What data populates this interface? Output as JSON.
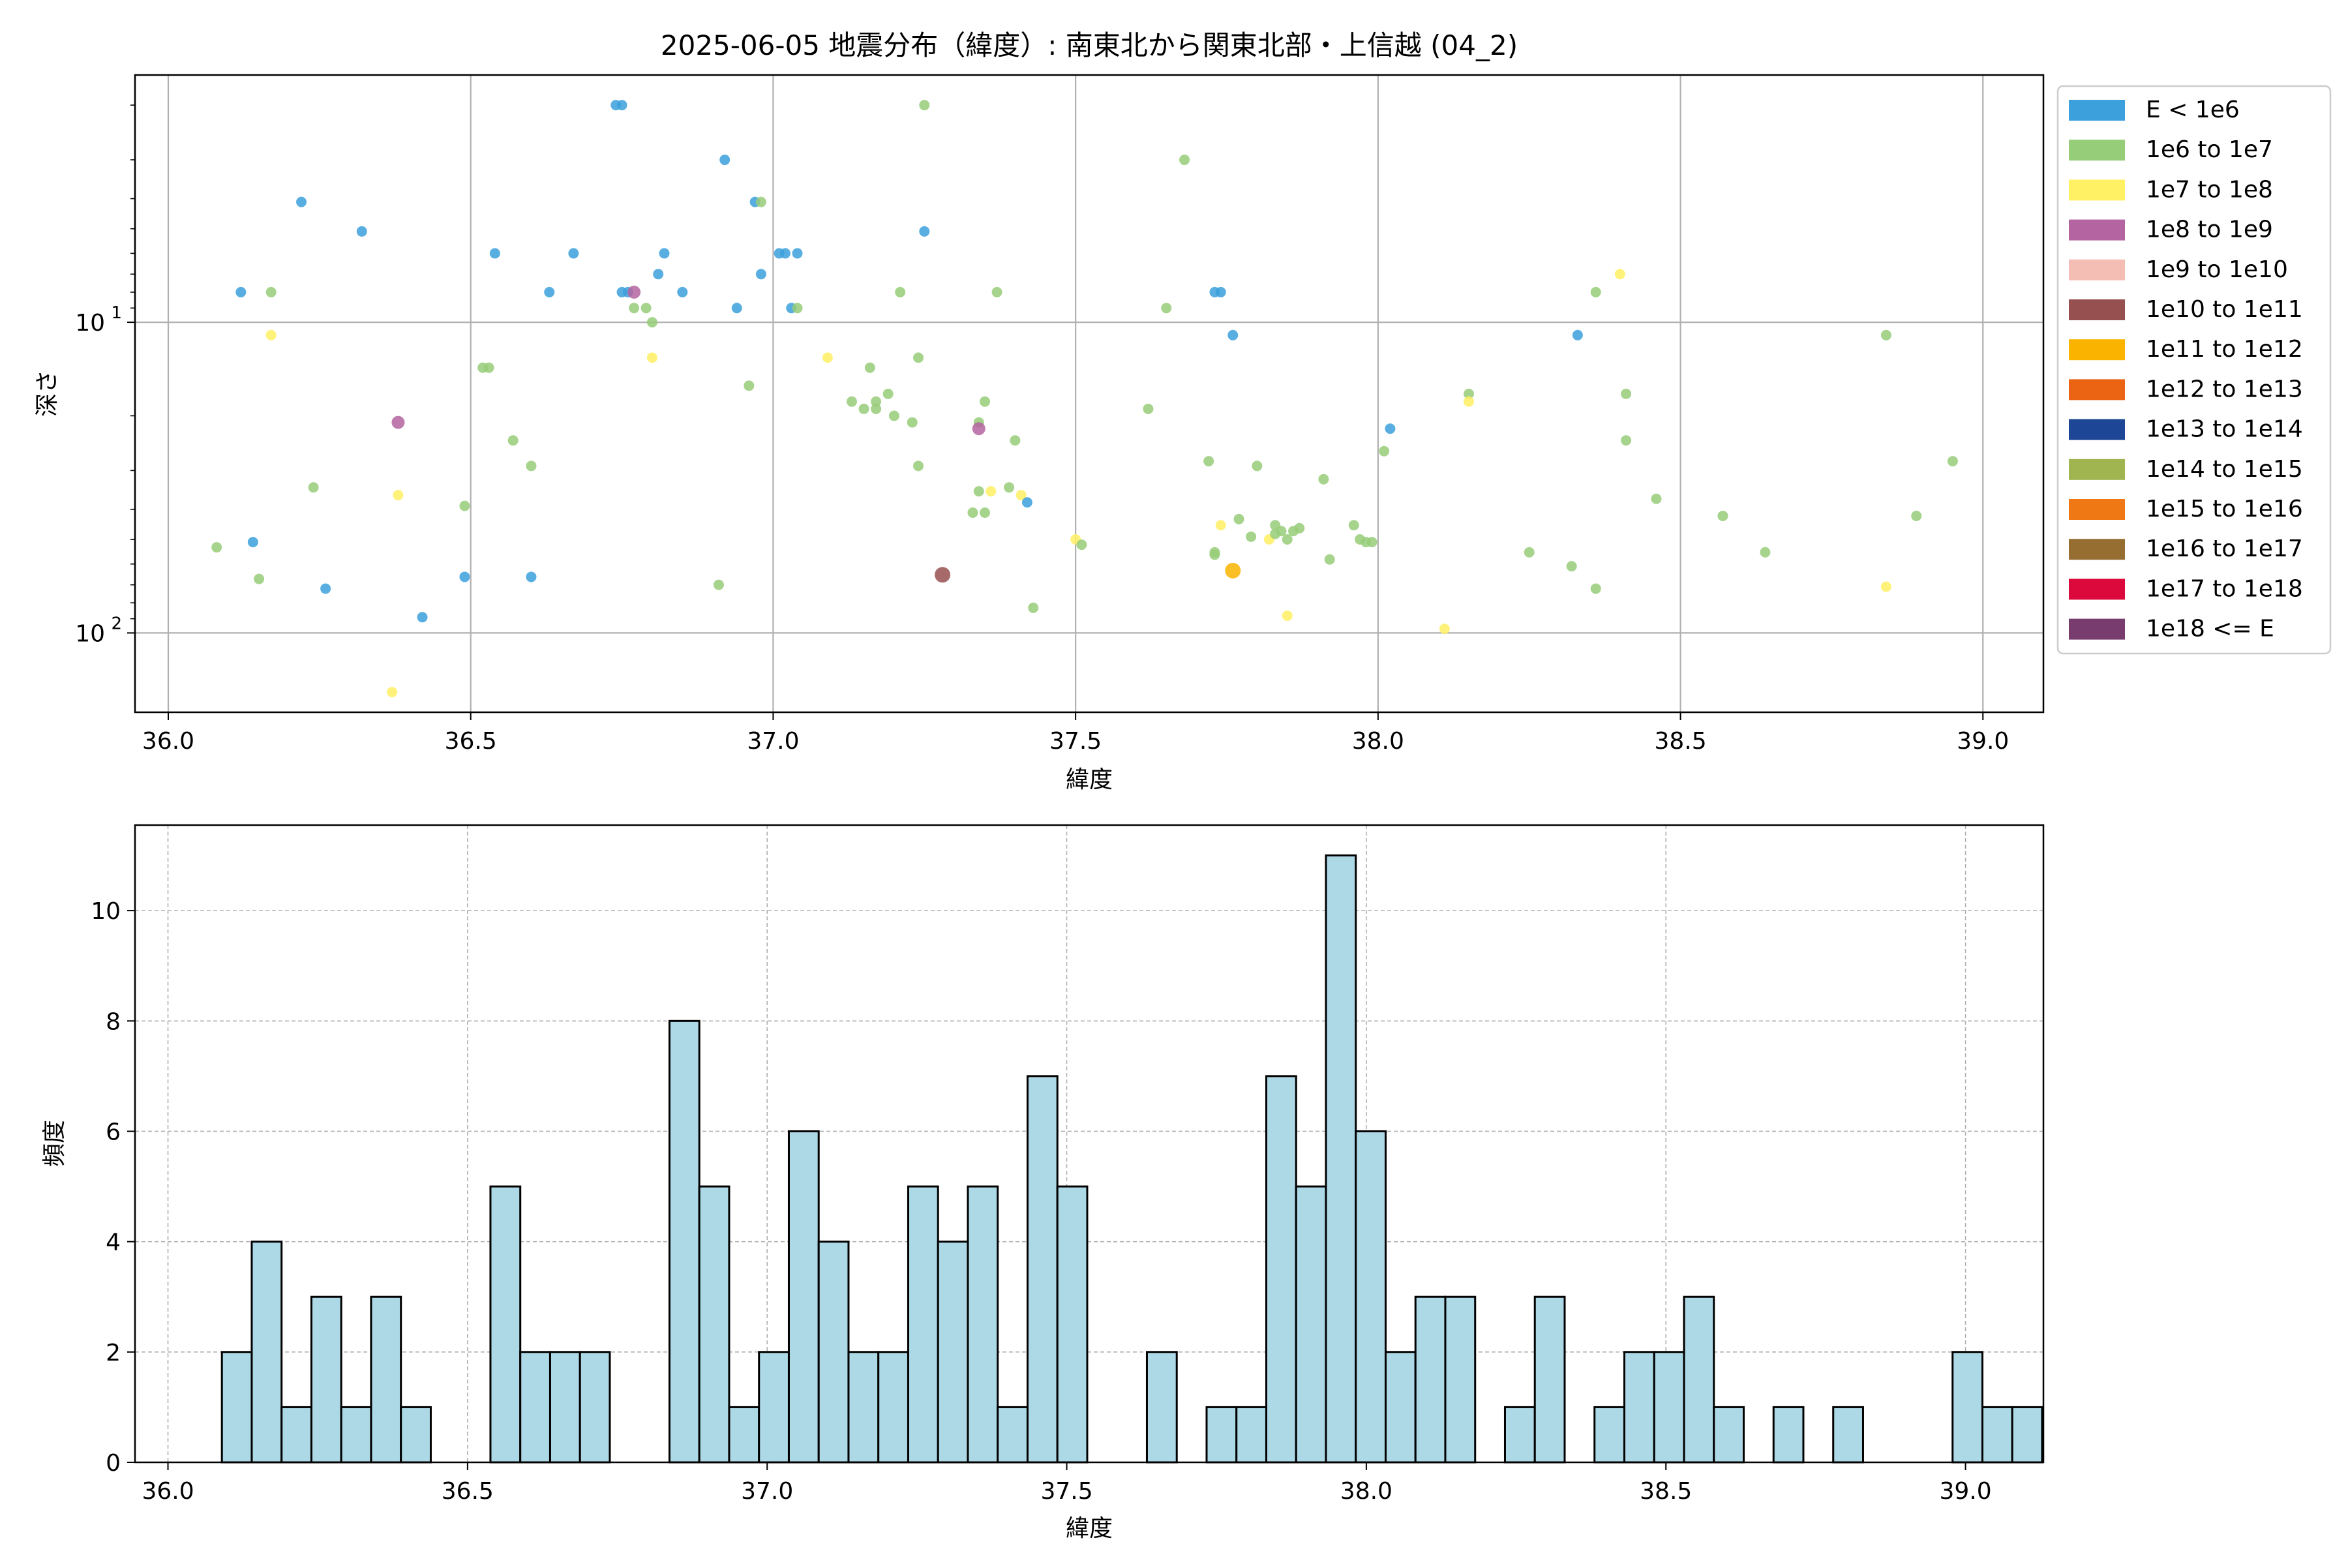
{
  "title": "2025-06-05 地震分布（緯度）: 南東北から関東北部・上信越 (04_2)",
  "chart_data": [
    {
      "type": "scatter",
      "xlabel": "緯度",
      "ylabel": "深さ",
      "xlim": [
        35.945,
        39.1
      ],
      "ylim": [
        180,
        1.6
      ],
      "yscale": "log",
      "y_inverted": true,
      "grid": true,
      "x_ticks": [
        36.0,
        36.5,
        37.0,
        37.5,
        38.0,
        38.5,
        39.0
      ],
      "x_tick_labels": [
        "36.0",
        "36.5",
        "37.0",
        "37.5",
        "38.0",
        "38.5",
        "39.0"
      ],
      "y_ticks": [
        10,
        100
      ],
      "y_tick_bases": [
        "10",
        "10"
      ],
      "y_tick_exps": [
        "1",
        "2"
      ],
      "legend_position": "outside-right",
      "legend": [
        {
          "label": "E < 1e6",
          "color": "#3ca0dc"
        },
        {
          "label": "1e6 to 1e7",
          "color": "#96cd78"
        },
        {
          "label": "1e7 to 1e8",
          "color": "#fff064"
        },
        {
          "label": "1e8 to 1e9",
          "color": "#b464a0"
        },
        {
          "label": "1e9 to 1e10",
          "color": "#f5beb4"
        },
        {
          "label": "1e10 to 1e11",
          "color": "#965050"
        },
        {
          "label": "1e11 to 1e12",
          "color": "#fab400"
        },
        {
          "label": "1e12 to 1e13",
          "color": "#eb6414"
        },
        {
          "label": "1e13 to 1e14",
          "color": "#1e4696"
        },
        {
          "label": "1e14 to 1e15",
          "color": "#a0b450"
        },
        {
          "label": "1e15 to 1e16",
          "color": "#f07814"
        },
        {
          "label": "1e16 to 1e17",
          "color": "#966e32"
        },
        {
          "label": "1e17 to 1e18",
          "color": "#dc0a3c"
        },
        {
          "label": "1e18 <= E",
          "color": "#783c6e"
        }
      ],
      "points": [
        {
          "x": 36.75,
          "y": 2.0,
          "c": 0
        },
        {
          "x": 36.74,
          "y": 2.0,
          "c": 0
        },
        {
          "x": 37.25,
          "y": 2.0,
          "c": 1
        },
        {
          "x": 36.92,
          "y": 3.0,
          "c": 0
        },
        {
          "x": 37.68,
          "y": 3.0,
          "c": 1
        },
        {
          "x": 36.22,
          "y": 4.1,
          "c": 0
        },
        {
          "x": 36.97,
          "y": 4.1,
          "c": 0
        },
        {
          "x": 36.98,
          "y": 4.1,
          "c": 1
        },
        {
          "x": 36.32,
          "y": 5.1,
          "c": 0
        },
        {
          "x": 37.25,
          "y": 5.1,
          "c": 0
        },
        {
          "x": 36.54,
          "y": 6.0,
          "c": 0
        },
        {
          "x": 36.67,
          "y": 6.0,
          "c": 0
        },
        {
          "x": 36.82,
          "y": 6.0,
          "c": 0
        },
        {
          "x": 37.01,
          "y": 6.0,
          "c": 0
        },
        {
          "x": 37.02,
          "y": 6.0,
          "c": 0
        },
        {
          "x": 37.04,
          "y": 6.0,
          "c": 0
        },
        {
          "x": 36.81,
          "y": 7.0,
          "c": 0
        },
        {
          "x": 36.98,
          "y": 7.0,
          "c": 0
        },
        {
          "x": 38.4,
          "y": 7.0,
          "c": 2
        },
        {
          "x": 36.12,
          "y": 8.0,
          "c": 0
        },
        {
          "x": 36.17,
          "y": 8.0,
          "c": 1
        },
        {
          "x": 36.63,
          "y": 8.0,
          "c": 0
        },
        {
          "x": 36.75,
          "y": 8.0,
          "c": 0
        },
        {
          "x": 36.76,
          "y": 8.0,
          "c": 0
        },
        {
          "x": 36.77,
          "y": 8.0,
          "c": 3
        },
        {
          "x": 36.85,
          "y": 8.0,
          "c": 0
        },
        {
          "x": 37.21,
          "y": 8.0,
          "c": 1
        },
        {
          "x": 37.37,
          "y": 8.0,
          "c": 1
        },
        {
          "x": 37.73,
          "y": 8.0,
          "c": 0
        },
        {
          "x": 37.74,
          "y": 8.0,
          "c": 0
        },
        {
          "x": 38.36,
          "y": 8.0,
          "c": 1
        },
        {
          "x": 36.77,
          "y": 9.0,
          "c": 1
        },
        {
          "x": 36.79,
          "y": 9.0,
          "c": 1
        },
        {
          "x": 36.94,
          "y": 9.0,
          "c": 0
        },
        {
          "x": 37.03,
          "y": 9.0,
          "c": 0
        },
        {
          "x": 37.04,
          "y": 9.0,
          "c": 1
        },
        {
          "x": 37.65,
          "y": 9.0,
          "c": 1
        },
        {
          "x": 36.8,
          "y": 10.0,
          "c": 1
        },
        {
          "x": 36.17,
          "y": 11.0,
          "c": 2
        },
        {
          "x": 37.76,
          "y": 11.0,
          "c": 0
        },
        {
          "x": 38.33,
          "y": 11.0,
          "c": 0
        },
        {
          "x": 38.84,
          "y": 11.0,
          "c": 1
        },
        {
          "x": 36.8,
          "y": 13.0,
          "c": 2
        },
        {
          "x": 37.09,
          "y": 13.0,
          "c": 2
        },
        {
          "x": 37.24,
          "y": 13.0,
          "c": 1
        },
        {
          "x": 36.52,
          "y": 14.0,
          "c": 1
        },
        {
          "x": 36.53,
          "y": 14.0,
          "c": 1
        },
        {
          "x": 37.16,
          "y": 14.0,
          "c": 1
        },
        {
          "x": 36.96,
          "y": 16.0,
          "c": 1
        },
        {
          "x": 37.19,
          "y": 17.0,
          "c": 1
        },
        {
          "x": 38.15,
          "y": 17.0,
          "c": 1
        },
        {
          "x": 38.41,
          "y": 17.0,
          "c": 1
        },
        {
          "x": 37.13,
          "y": 18.0,
          "c": 1
        },
        {
          "x": 37.17,
          "y": 18.0,
          "c": 1
        },
        {
          "x": 37.35,
          "y": 18.0,
          "c": 1
        },
        {
          "x": 38.15,
          "y": 18.0,
          "c": 2
        },
        {
          "x": 37.15,
          "y": 19.0,
          "c": 1
        },
        {
          "x": 37.17,
          "y": 19.0,
          "c": 1
        },
        {
          "x": 37.62,
          "y": 19.0,
          "c": 1
        },
        {
          "x": 37.2,
          "y": 20.0,
          "c": 1
        },
        {
          "x": 37.23,
          "y": 21.0,
          "c": 1
        },
        {
          "x": 37.34,
          "y": 21.0,
          "c": 1
        },
        {
          "x": 36.38,
          "y": 21.0,
          "c": 3
        },
        {
          "x": 38.02,
          "y": 22.0,
          "c": 0
        },
        {
          "x": 37.34,
          "y": 22.0,
          "c": 3
        },
        {
          "x": 36.57,
          "y": 24.0,
          "c": 1
        },
        {
          "x": 37.4,
          "y": 24.0,
          "c": 1
        },
        {
          "x": 38.41,
          "y": 24.0,
          "c": 1
        },
        {
          "x": 38.01,
          "y": 26.0,
          "c": 1
        },
        {
          "x": 36.6,
          "y": 29.0,
          "c": 1
        },
        {
          "x": 37.24,
          "y": 29.0,
          "c": 1
        },
        {
          "x": 37.72,
          "y": 28.0,
          "c": 1
        },
        {
          "x": 37.8,
          "y": 29.0,
          "c": 1
        },
        {
          "x": 38.95,
          "y": 28.0,
          "c": 1
        },
        {
          "x": 37.91,
          "y": 32.0,
          "c": 1
        },
        {
          "x": 36.24,
          "y": 34.0,
          "c": 1
        },
        {
          "x": 36.38,
          "y": 36.0,
          "c": 2
        },
        {
          "x": 37.34,
          "y": 35.0,
          "c": 1
        },
        {
          "x": 37.36,
          "y": 35.0,
          "c": 2
        },
        {
          "x": 37.39,
          "y": 34.0,
          "c": 1
        },
        {
          "x": 37.41,
          "y": 36.0,
          "c": 2
        },
        {
          "x": 38.46,
          "y": 37.0,
          "c": 1
        },
        {
          "x": 36.49,
          "y": 39.0,
          "c": 1
        },
        {
          "x": 37.42,
          "y": 38.0,
          "c": 0
        },
        {
          "x": 37.33,
          "y": 41.0,
          "c": 1
        },
        {
          "x": 37.35,
          "y": 41.0,
          "c": 1
        },
        {
          "x": 38.57,
          "y": 42.0,
          "c": 1
        },
        {
          "x": 38.89,
          "y": 42.0,
          "c": 1
        },
        {
          "x": 37.74,
          "y": 45.0,
          "c": 2
        },
        {
          "x": 37.77,
          "y": 43.0,
          "c": 1
        },
        {
          "x": 37.83,
          "y": 45.0,
          "c": 1
        },
        {
          "x": 37.96,
          "y": 45.0,
          "c": 1
        },
        {
          "x": 37.84,
          "y": 47.0,
          "c": 1
        },
        {
          "x": 37.87,
          "y": 46.0,
          "c": 1
        },
        {
          "x": 37.86,
          "y": 47.0,
          "c": 1
        },
        {
          "x": 37.79,
          "y": 49.0,
          "c": 1
        },
        {
          "x": 37.82,
          "y": 50.0,
          "c": 2
        },
        {
          "x": 37.83,
          "y": 48.0,
          "c": 1
        },
        {
          "x": 37.85,
          "y": 50.0,
          "c": 1
        },
        {
          "x": 37.97,
          "y": 50.0,
          "c": 1
        },
        {
          "x": 37.98,
          "y": 51.0,
          "c": 1
        },
        {
          "x": 37.99,
          "y": 51.0,
          "c": 1
        },
        {
          "x": 36.08,
          "y": 53.0,
          "c": 1
        },
        {
          "x": 36.14,
          "y": 51.0,
          "c": 0
        },
        {
          "x": 37.5,
          "y": 50.0,
          "c": 2
        },
        {
          "x": 37.51,
          "y": 52.0,
          "c": 1
        },
        {
          "x": 37.73,
          "y": 55.0,
          "c": 1
        },
        {
          "x": 37.73,
          "y": 56.0,
          "c": 1
        },
        {
          "x": 38.25,
          "y": 55.0,
          "c": 1
        },
        {
          "x": 38.64,
          "y": 55.0,
          "c": 1
        },
        {
          "x": 37.92,
          "y": 58.0,
          "c": 1
        },
        {
          "x": 38.32,
          "y": 61.0,
          "c": 1
        },
        {
          "x": 37.76,
          "y": 63.0,
          "c": 6
        },
        {
          "x": 37.28,
          "y": 65.0,
          "c": 5
        },
        {
          "x": 36.15,
          "y": 67.0,
          "c": 1
        },
        {
          "x": 36.49,
          "y": 66.0,
          "c": 0
        },
        {
          "x": 36.6,
          "y": 66.0,
          "c": 0
        },
        {
          "x": 36.91,
          "y": 70.0,
          "c": 1
        },
        {
          "x": 36.26,
          "y": 72.0,
          "c": 0
        },
        {
          "x": 38.36,
          "y": 72.0,
          "c": 1
        },
        {
          "x": 38.84,
          "y": 71.0,
          "c": 2
        },
        {
          "x": 37.43,
          "y": 83.0,
          "c": 1
        },
        {
          "x": 36.42,
          "y": 89.0,
          "c": 0
        },
        {
          "x": 37.85,
          "y": 88.0,
          "c": 2
        },
        {
          "x": 38.11,
          "y": 97.0,
          "c": 2
        },
        {
          "x": 36.37,
          "y": 155.0,
          "c": 2
        }
      ]
    },
    {
      "type": "bar",
      "xlabel": "緯度",
      "ylabel": "頻度",
      "xlim": [
        35.945,
        39.13
      ],
      "ylim": [
        0,
        11.55
      ],
      "grid": true,
      "x_ticks": [
        36.0,
        36.5,
        37.0,
        37.5,
        38.0,
        38.5,
        39.0
      ],
      "x_tick_labels": [
        "36.0",
        "36.5",
        "37.0",
        "37.5",
        "38.0",
        "38.5",
        "39.0"
      ],
      "y_ticks": [
        0,
        2,
        4,
        6,
        8,
        10
      ],
      "y_tick_labels": [
        "0",
        "2",
        "4",
        "6",
        "8",
        "10"
      ],
      "bin_start": 36.09,
      "bin_width": 0.0498,
      "bar_color": "#add8e6",
      "edge_color": "#000000",
      "values": [
        2,
        4,
        1,
        3,
        1,
        3,
        1,
        0,
        0,
        5,
        2,
        2,
        2,
        0,
        0,
        8,
        5,
        1,
        2,
        6,
        4,
        2,
        2,
        5,
        4,
        5,
        1,
        7,
        5,
        0,
        0,
        2,
        0,
        1,
        1,
        7,
        5,
        11,
        6,
        2,
        3,
        3,
        0,
        1,
        3,
        0,
        1,
        2,
        2,
        3,
        1,
        0,
        1,
        0,
        1,
        0,
        0,
        0,
        2,
        1,
        1
      ]
    }
  ]
}
